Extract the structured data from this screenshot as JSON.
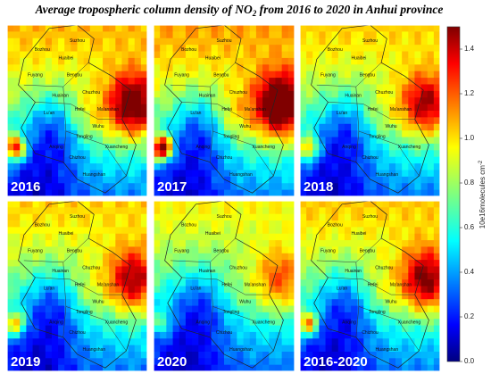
{
  "title": {
    "main": "Average tropospheric column density of NO",
    "sub": "2",
    "rest": " from 2016 to 2020 in Anhui province"
  },
  "panels": [
    "2016",
    "2017",
    "2018",
    "2019",
    "2020",
    "2016-2020"
  ],
  "cities": [
    "Bozhou",
    "Suzhou",
    "Huaibei",
    "Fuyang",
    "Bengbu",
    "Huainan",
    "Chuzhou",
    "Lu'an",
    "Hefei",
    "Ma'anshan",
    "Wuhu",
    "Tongling",
    "Anqing",
    "Chizhou",
    "Xuancheng",
    "Huangshan"
  ],
  "colorbar": {
    "label": "10e16molecules cm",
    "label_sup": "-2",
    "clim": [
      0,
      1.5
    ],
    "ticks": [
      {
        "value": 0,
        "label": "0.0"
      },
      {
        "value": 0.2,
        "label": "0.2"
      },
      {
        "value": 0.4,
        "label": "0.4"
      },
      {
        "value": 0.6,
        "label": "0.6"
      },
      {
        "value": 0.8,
        "label": "0.8"
      },
      {
        "value": 1.0,
        "label": "1.0"
      },
      {
        "value": 1.2,
        "label": "1.2"
      },
      {
        "value": 1.4,
        "label": "1.4"
      }
    ]
  }
}
